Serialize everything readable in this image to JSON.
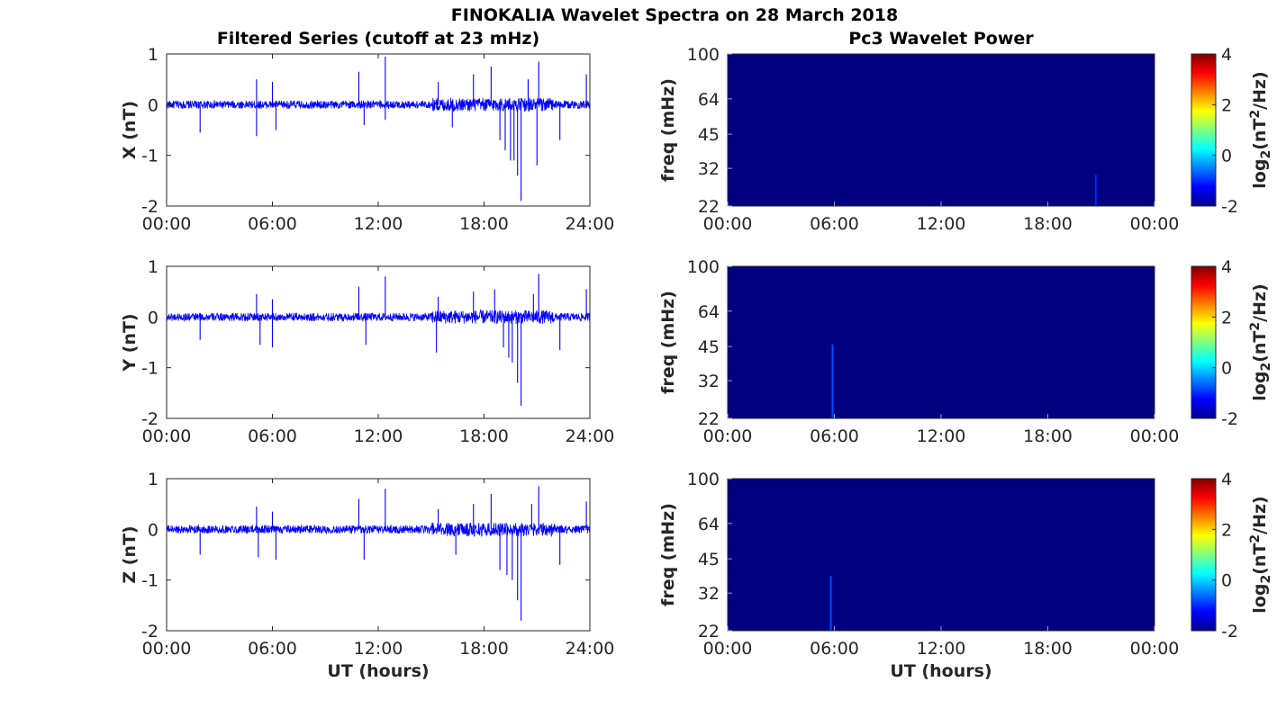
{
  "figure": {
    "title": "FINOKALIA Wavelet Spectra on 28 March 2018",
    "left_column_title": "Filtered Series (cutoff at 23 mHz)",
    "right_column_title": "Pc3 Wavelet Power",
    "xlabel": "UT (hours)"
  },
  "colors": {
    "series": "#0000ff",
    "spectrum_background": "#00008f",
    "axes": "#262626"
  },
  "chart_data": [
    {
      "type": "line",
      "component": "X",
      "ylabel": "X (nT)",
      "xlim": [
        0,
        24
      ],
      "ylim": [
        -2,
        1
      ],
      "xticks": [
        "00:00",
        "06:00",
        "12:00",
        "18:00",
        "24:00"
      ],
      "yticks": [
        "1",
        "0",
        "-1",
        "-2"
      ],
      "noise_amplitude": 0.08,
      "spikes": [
        {
          "t": 1.9,
          "v": -0.55
        },
        {
          "t": 5.1,
          "v": 0.5
        },
        {
          "t": 5.1,
          "v": -0.62
        },
        {
          "t": 6.0,
          "v": 0.45
        },
        {
          "t": 6.2,
          "v": -0.5
        },
        {
          "t": 10.9,
          "v": 0.65
        },
        {
          "t": 11.2,
          "v": -0.4
        },
        {
          "t": 12.4,
          "v": 0.95
        },
        {
          "t": 12.4,
          "v": -0.3
        },
        {
          "t": 15.4,
          "v": 0.45
        },
        {
          "t": 16.2,
          "v": -0.45
        },
        {
          "t": 17.4,
          "v": 0.6
        },
        {
          "t": 18.4,
          "v": 0.75
        },
        {
          "t": 18.9,
          "v": -0.7
        },
        {
          "t": 19.2,
          "v": -0.9
        },
        {
          "t": 19.5,
          "v": -1.1
        },
        {
          "t": 19.7,
          "v": -1.1
        },
        {
          "t": 19.9,
          "v": -1.4
        },
        {
          "t": 20.1,
          "v": -1.9
        },
        {
          "t": 20.5,
          "v": 0.5
        },
        {
          "t": 21.0,
          "v": -1.2
        },
        {
          "t": 21.1,
          "v": 0.85
        },
        {
          "t": 22.3,
          "v": -0.7
        },
        {
          "t": 23.8,
          "v": 0.6
        }
      ]
    },
    {
      "type": "line",
      "component": "Y",
      "ylabel": "Y (nT)",
      "xlim": [
        0,
        24
      ],
      "ylim": [
        -2,
        1
      ],
      "xticks": [
        "00:00",
        "06:00",
        "12:00",
        "18:00",
        "24:00"
      ],
      "yticks": [
        "1",
        "0",
        "-1",
        "-2"
      ],
      "noise_amplitude": 0.08,
      "spikes": [
        {
          "t": 1.9,
          "v": -0.45
        },
        {
          "t": 5.1,
          "v": 0.45
        },
        {
          "t": 5.3,
          "v": -0.55
        },
        {
          "t": 6.0,
          "v": 0.35
        },
        {
          "t": 6.0,
          "v": -0.6
        },
        {
          "t": 10.9,
          "v": 0.6
        },
        {
          "t": 11.3,
          "v": -0.55
        },
        {
          "t": 12.4,
          "v": 0.8
        },
        {
          "t": 15.4,
          "v": 0.4
        },
        {
          "t": 15.3,
          "v": -0.7
        },
        {
          "t": 17.4,
          "v": 0.5
        },
        {
          "t": 18.6,
          "v": 0.55
        },
        {
          "t": 19.1,
          "v": -0.6
        },
        {
          "t": 19.4,
          "v": -0.8
        },
        {
          "t": 19.6,
          "v": -0.9
        },
        {
          "t": 19.9,
          "v": -1.3
        },
        {
          "t": 20.1,
          "v": -1.75
        },
        {
          "t": 20.8,
          "v": 0.45
        },
        {
          "t": 21.1,
          "v": 0.85
        },
        {
          "t": 22.3,
          "v": -0.65
        },
        {
          "t": 23.8,
          "v": 0.55
        }
      ]
    },
    {
      "type": "line",
      "component": "Z",
      "ylabel": "Z (nT)",
      "xlim": [
        0,
        24
      ],
      "ylim": [
        -2,
        1
      ],
      "xticks": [
        "00:00",
        "06:00",
        "12:00",
        "18:00",
        "24:00"
      ],
      "yticks": [
        "1",
        "0",
        "-1",
        "-2"
      ],
      "noise_amplitude": 0.08,
      "spikes": [
        {
          "t": 1.9,
          "v": -0.5
        },
        {
          "t": 5.1,
          "v": 0.45
        },
        {
          "t": 5.2,
          "v": -0.55
        },
        {
          "t": 6.0,
          "v": 0.35
        },
        {
          "t": 6.2,
          "v": -0.6
        },
        {
          "t": 10.9,
          "v": 0.6
        },
        {
          "t": 11.2,
          "v": -0.6
        },
        {
          "t": 12.4,
          "v": 0.8
        },
        {
          "t": 15.4,
          "v": 0.4
        },
        {
          "t": 16.4,
          "v": -0.5
        },
        {
          "t": 17.4,
          "v": 0.5
        },
        {
          "t": 18.4,
          "v": 0.7
        },
        {
          "t": 18.9,
          "v": -0.8
        },
        {
          "t": 19.3,
          "v": -0.9
        },
        {
          "t": 19.6,
          "v": -1.0
        },
        {
          "t": 19.9,
          "v": -1.4
        },
        {
          "t": 20.1,
          "v": -1.8
        },
        {
          "t": 20.7,
          "v": 0.5
        },
        {
          "t": 21.1,
          "v": 0.85
        },
        {
          "t": 22.3,
          "v": -0.7
        },
        {
          "t": 23.8,
          "v": 0.55
        }
      ]
    },
    {
      "type": "heatmap",
      "component": "X",
      "ylabel": "freq (mHz)",
      "xlim": [
        0,
        24
      ],
      "ylim": [
        22,
        100
      ],
      "yscale": "log",
      "xticks": [
        "00:00",
        "06:00",
        "12:00",
        "18:00",
        "00:00"
      ],
      "yticks": [
        "100",
        "64",
        "45",
        "32",
        "22"
      ],
      "colorbar": {
        "label": "log2(nT^2/Hz)",
        "ticks": [
          "4",
          "2",
          "0",
          "-2"
        ],
        "range": [
          -2,
          4
        ],
        "colormap": "jet"
      },
      "background_value": -2,
      "features": [
        {
          "t": 20.7,
          "fmin": 22,
          "fmax": 30,
          "value": -1
        }
      ]
    },
    {
      "type": "heatmap",
      "component": "Y",
      "ylabel": "freq (mHz)",
      "xlim": [
        0,
        24
      ],
      "ylim": [
        22,
        100
      ],
      "yscale": "log",
      "xticks": [
        "00:00",
        "06:00",
        "12:00",
        "18:00",
        "00:00"
      ],
      "yticks": [
        "100",
        "64",
        "45",
        "32",
        "22"
      ],
      "colorbar": {
        "label": "log2(nT^2/Hz)",
        "ticks": [
          "4",
          "2",
          "0",
          "-2"
        ],
        "range": [
          -2,
          4
        ],
        "colormap": "jet"
      },
      "background_value": -2,
      "features": [
        {
          "t": 5.9,
          "fmin": 22,
          "fmax": 46,
          "value": -0.8
        }
      ]
    },
    {
      "type": "heatmap",
      "component": "Z",
      "ylabel": "freq (mHz)",
      "xlim": [
        0,
        24
      ],
      "ylim": [
        22,
        100
      ],
      "yscale": "log",
      "xticks": [
        "00:00",
        "06:00",
        "12:00",
        "18:00",
        "00:00"
      ],
      "yticks": [
        "100",
        "64",
        "45",
        "32",
        "22"
      ],
      "colorbar": {
        "label": "log2(nT^2/Hz)",
        "ticks": [
          "4",
          "2",
          "0",
          "-2"
        ],
        "range": [
          -2,
          4
        ],
        "colormap": "jet"
      },
      "background_value": -2,
      "features": [
        {
          "t": 5.8,
          "fmin": 22,
          "fmax": 38,
          "value": -0.8
        }
      ]
    }
  ]
}
